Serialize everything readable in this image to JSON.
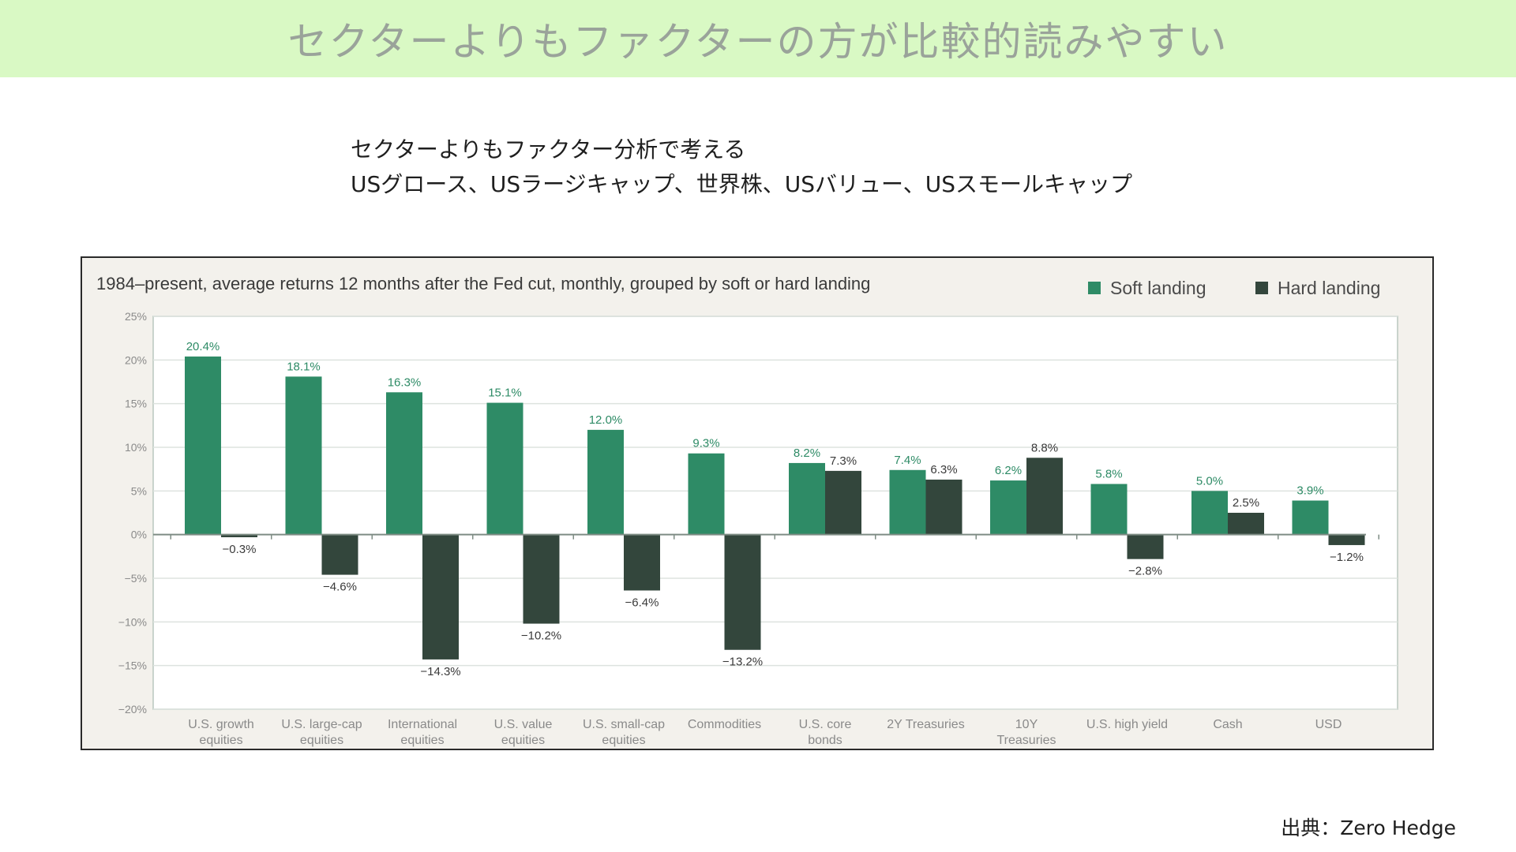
{
  "slide": {
    "title": "セクターよりもファクターの方が比較的読みやすい",
    "subtitle_line1": "セクターよりもファクター分析で考える",
    "subtitle_line2": "USグロース、USラージキャップ、世界株、USバリュー、USスモールキャップ",
    "source": "出典：Zero Hedge"
  },
  "chart_data": {
    "type": "bar",
    "title": "1984–present, average returns 12 months after the Fed cut, monthly, grouped by soft or hard landing",
    "xlabel": "",
    "ylabel": "",
    "ylim": [
      -20,
      25
    ],
    "yticks": [
      "25%",
      "20%",
      "15%",
      "10%",
      "5%",
      "0%",
      "−5%",
      "−10%",
      "−15%",
      "−20%"
    ],
    "grid": true,
    "legend_position": "top-right",
    "categories": [
      [
        "U.S. growth",
        "equities"
      ],
      [
        "U.S. large-cap",
        "equities"
      ],
      [
        "International",
        "equities"
      ],
      [
        "U.S. value",
        "equities"
      ],
      [
        "U.S. small-cap",
        "equities"
      ],
      [
        "Commodities"
      ],
      [
        "U.S. core",
        "bonds"
      ],
      [
        "2Y Treasuries"
      ],
      [
        "10Y",
        "Treasuries"
      ],
      [
        "U.S. high yield"
      ],
      [
        "Cash"
      ],
      [
        "USD"
      ]
    ],
    "series": [
      {
        "name": "Soft landing",
        "color": "#2e8b66",
        "values": [
          20.4,
          18.1,
          16.3,
          15.1,
          12.0,
          9.3,
          8.2,
          7.4,
          6.2,
          5.8,
          5.0,
          3.9
        ],
        "labels": [
          "20.4%",
          "18.1%",
          "16.3%",
          "15.1%",
          "12.0%",
          "9.3%",
          "8.2%",
          "7.4%",
          "6.2%",
          "5.8%",
          "5.0%",
          "3.9%"
        ]
      },
      {
        "name": "Hard landing",
        "color": "#33463c",
        "values": [
          -0.3,
          -4.6,
          -14.3,
          -10.2,
          -6.4,
          -13.2,
          7.3,
          6.3,
          8.8,
          -2.8,
          2.5,
          -1.2
        ],
        "labels": [
          "−0.3%",
          "−4.6%",
          "−14.3%",
          "−10.2%",
          "−6.4%",
          "−13.2%",
          "7.3%",
          "6.3%",
          "8.8%",
          "−2.8%",
          "2.5%",
          "−1.2%"
        ]
      }
    ]
  }
}
